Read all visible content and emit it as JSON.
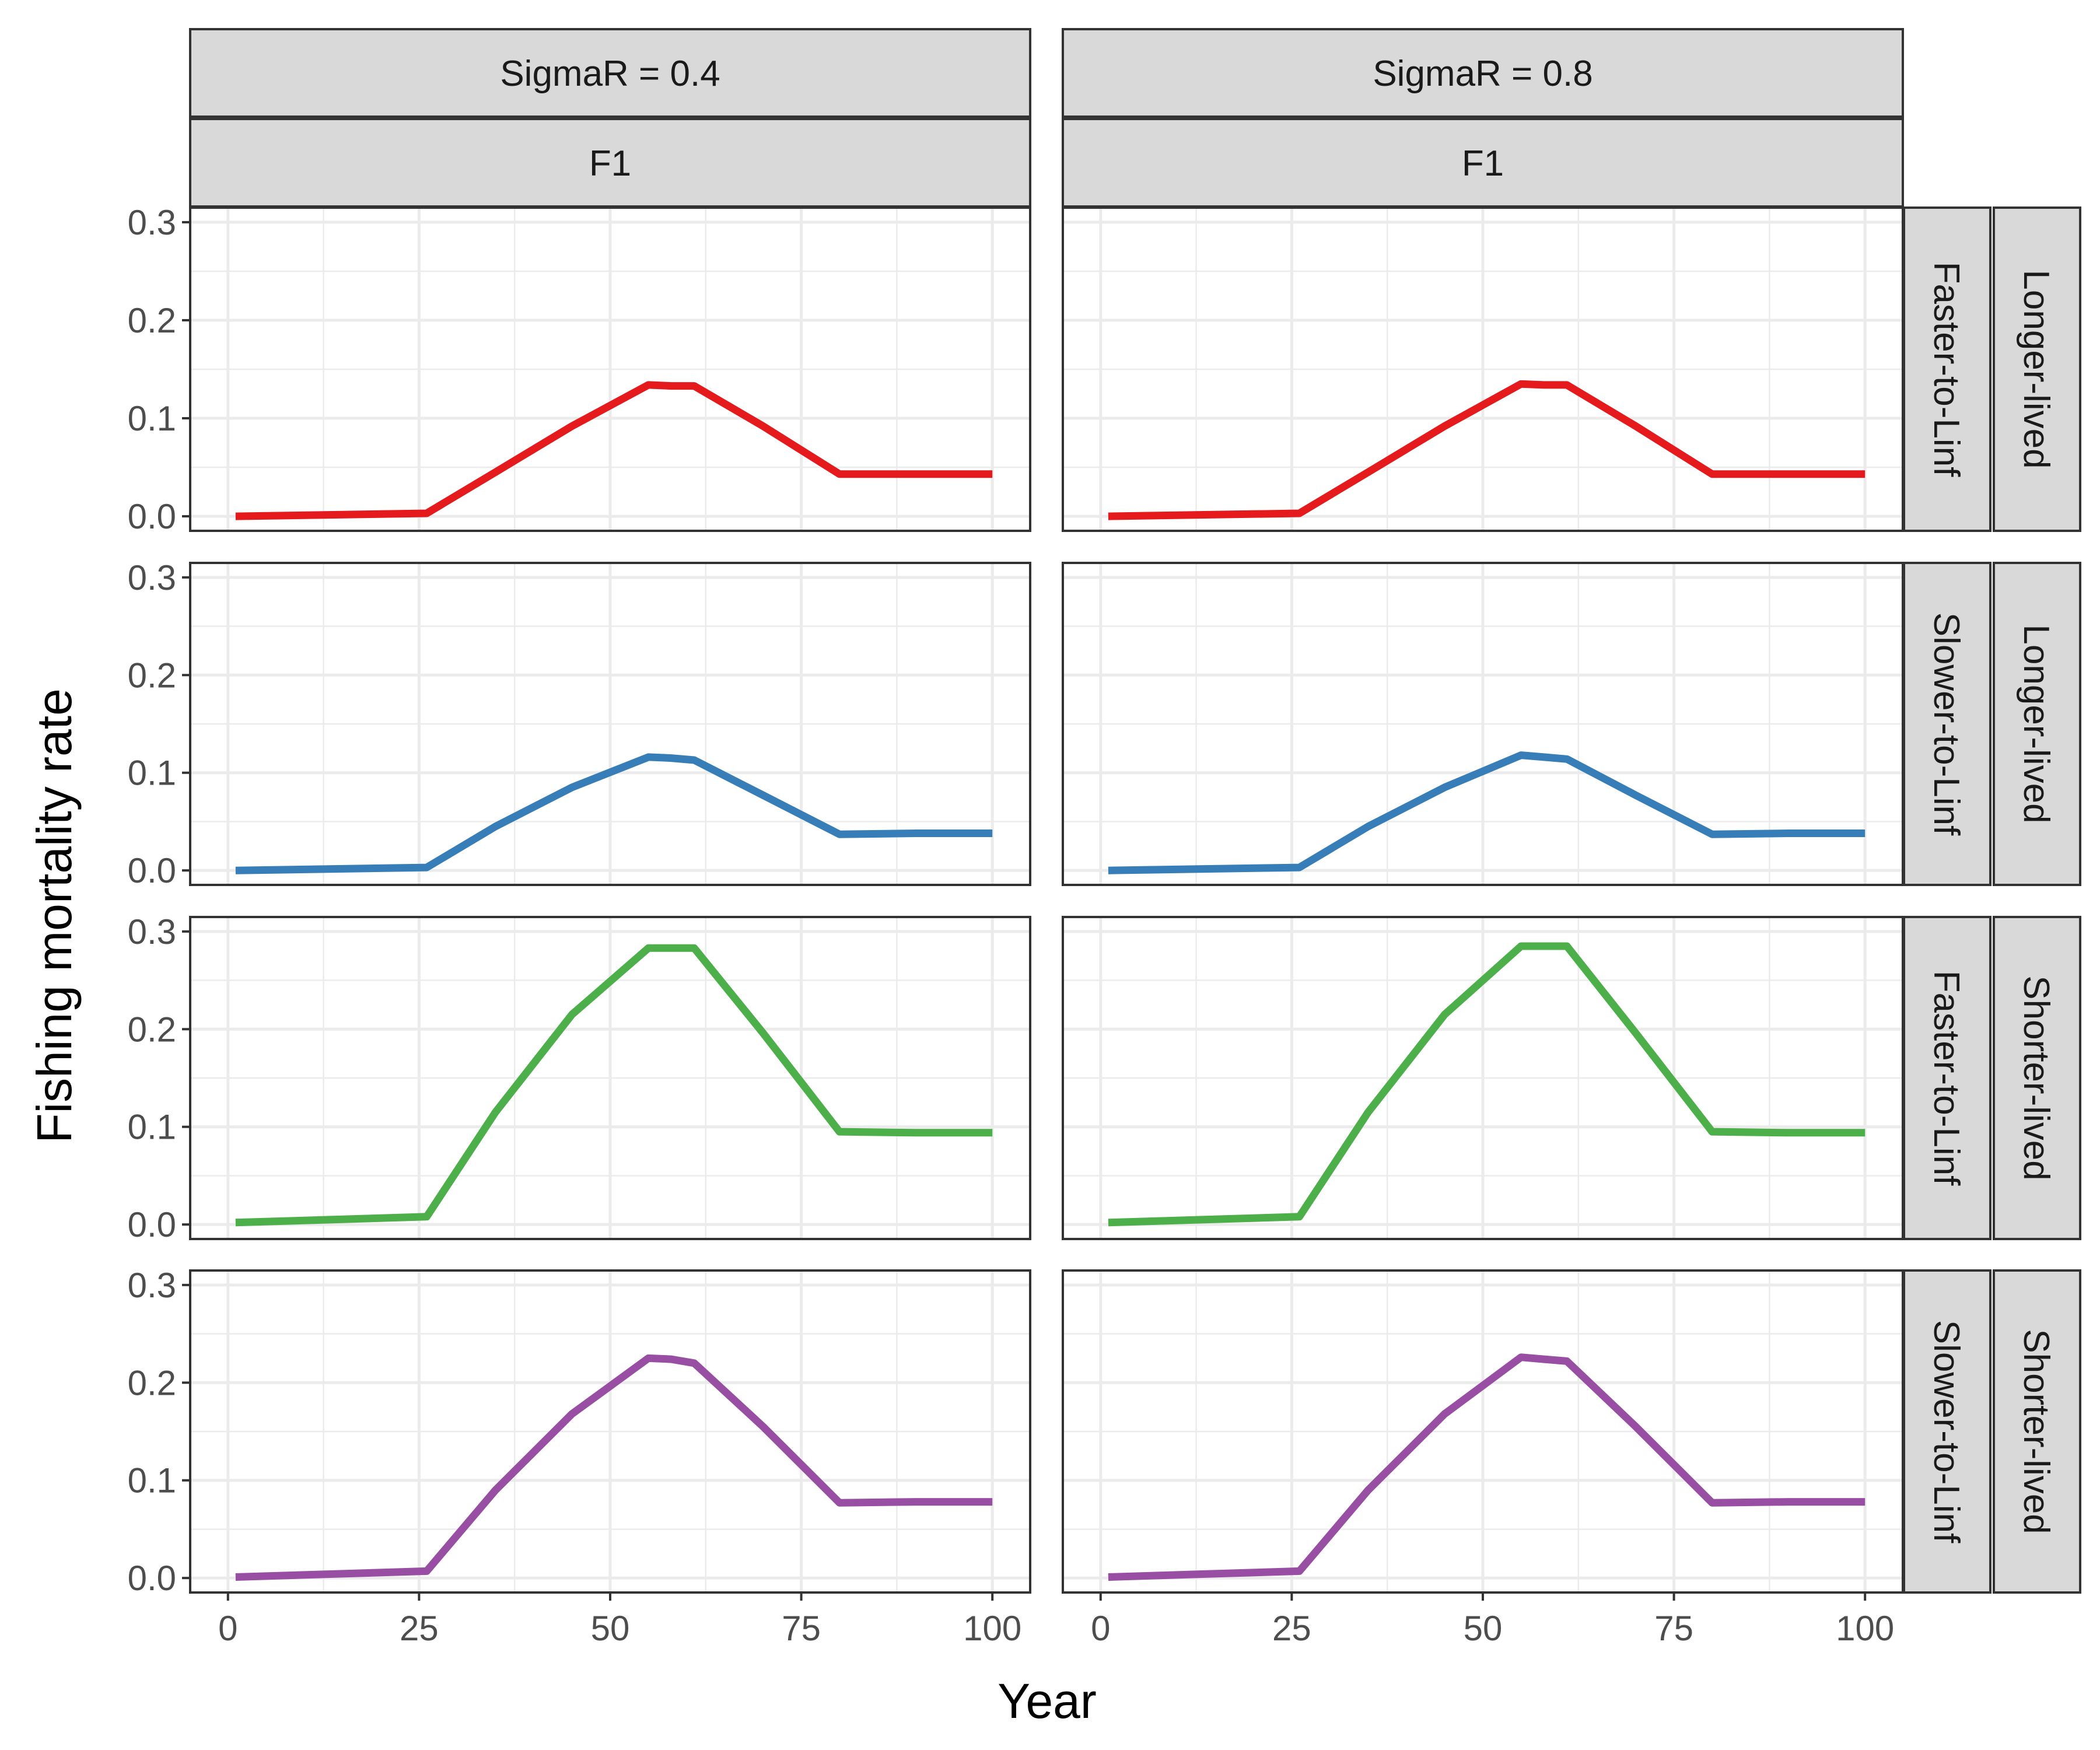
{
  "chart_data": {
    "type": "line",
    "title": "",
    "xlabel": "Year",
    "ylabel": "Fishing mortality rate",
    "xlim": [
      0,
      100
    ],
    "ylim": [
      0,
      0.3
    ],
    "x_ticks": [
      "0",
      "25",
      "50",
      "75",
      "100"
    ],
    "y_ticks": [
      "0.0",
      "0.1",
      "0.2",
      "0.3"
    ],
    "grid": true,
    "legend": "none",
    "col_strips": [
      {
        "top": "SigmaR = 0.4",
        "bottom": "F1"
      },
      {
        "top": "SigmaR = 0.8",
        "bottom": "F1"
      }
    ],
    "row_strips": [
      {
        "inner": "Faster-to-Linf",
        "outer": "Longer-lived",
        "color": "#e41a1c"
      },
      {
        "inner": "Slower-to-Linf",
        "outer": "Longer-lived",
        "color": "#377eb8"
      },
      {
        "inner": "Faster-to-Linf",
        "outer": "Shorter-lived",
        "color": "#4daf4a"
      },
      {
        "inner": "Slower-to-Linf",
        "outer": "Shorter-lived",
        "color": "#984ea3"
      }
    ],
    "series": [
      {
        "row": 0,
        "col": 0,
        "x": [
          1,
          26,
          35,
          45,
          55,
          58,
          61,
          70,
          80,
          90,
          100
        ],
        "y": [
          0.0,
          0.003,
          0.045,
          0.092,
          0.134,
          0.133,
          0.133,
          0.092,
          0.043,
          0.043,
          0.043
        ]
      },
      {
        "row": 0,
        "col": 1,
        "x": [
          1,
          26,
          35,
          45,
          55,
          58,
          61,
          70,
          80,
          90,
          100
        ],
        "y": [
          0.0,
          0.003,
          0.045,
          0.092,
          0.135,
          0.134,
          0.134,
          0.092,
          0.043,
          0.043,
          0.043
        ]
      },
      {
        "row": 1,
        "col": 0,
        "x": [
          1,
          26,
          35,
          45,
          55,
          58,
          61,
          70,
          80,
          90,
          100
        ],
        "y": [
          0.0,
          0.003,
          0.045,
          0.085,
          0.116,
          0.115,
          0.113,
          0.077,
          0.037,
          0.038,
          0.038
        ]
      },
      {
        "row": 1,
        "col": 1,
        "x": [
          1,
          26,
          35,
          45,
          55,
          58,
          61,
          70,
          80,
          90,
          100
        ],
        "y": [
          0.0,
          0.003,
          0.045,
          0.085,
          0.118,
          0.116,
          0.114,
          0.077,
          0.037,
          0.038,
          0.038
        ]
      },
      {
        "row": 2,
        "col": 0,
        "x": [
          1,
          26,
          35,
          45,
          55,
          58,
          61,
          70,
          80,
          90,
          100
        ],
        "y": [
          0.002,
          0.008,
          0.115,
          0.215,
          0.283,
          0.283,
          0.283,
          0.196,
          0.095,
          0.094,
          0.094
        ]
      },
      {
        "row": 2,
        "col": 1,
        "x": [
          1,
          26,
          35,
          45,
          55,
          58,
          61,
          70,
          80,
          90,
          100
        ],
        "y": [
          0.002,
          0.008,
          0.115,
          0.215,
          0.285,
          0.285,
          0.285,
          0.196,
          0.095,
          0.094,
          0.094
        ]
      },
      {
        "row": 3,
        "col": 0,
        "x": [
          1,
          26,
          35,
          45,
          55,
          58,
          61,
          70,
          80,
          90,
          100
        ],
        "y": [
          0.001,
          0.007,
          0.09,
          0.168,
          0.225,
          0.224,
          0.22,
          0.155,
          0.077,
          0.078,
          0.078
        ]
      },
      {
        "row": 3,
        "col": 1,
        "x": [
          1,
          26,
          35,
          45,
          55,
          58,
          61,
          70,
          80,
          90,
          100
        ],
        "y": [
          0.001,
          0.007,
          0.09,
          0.168,
          0.226,
          0.224,
          0.222,
          0.155,
          0.077,
          0.078,
          0.078
        ]
      }
    ]
  }
}
